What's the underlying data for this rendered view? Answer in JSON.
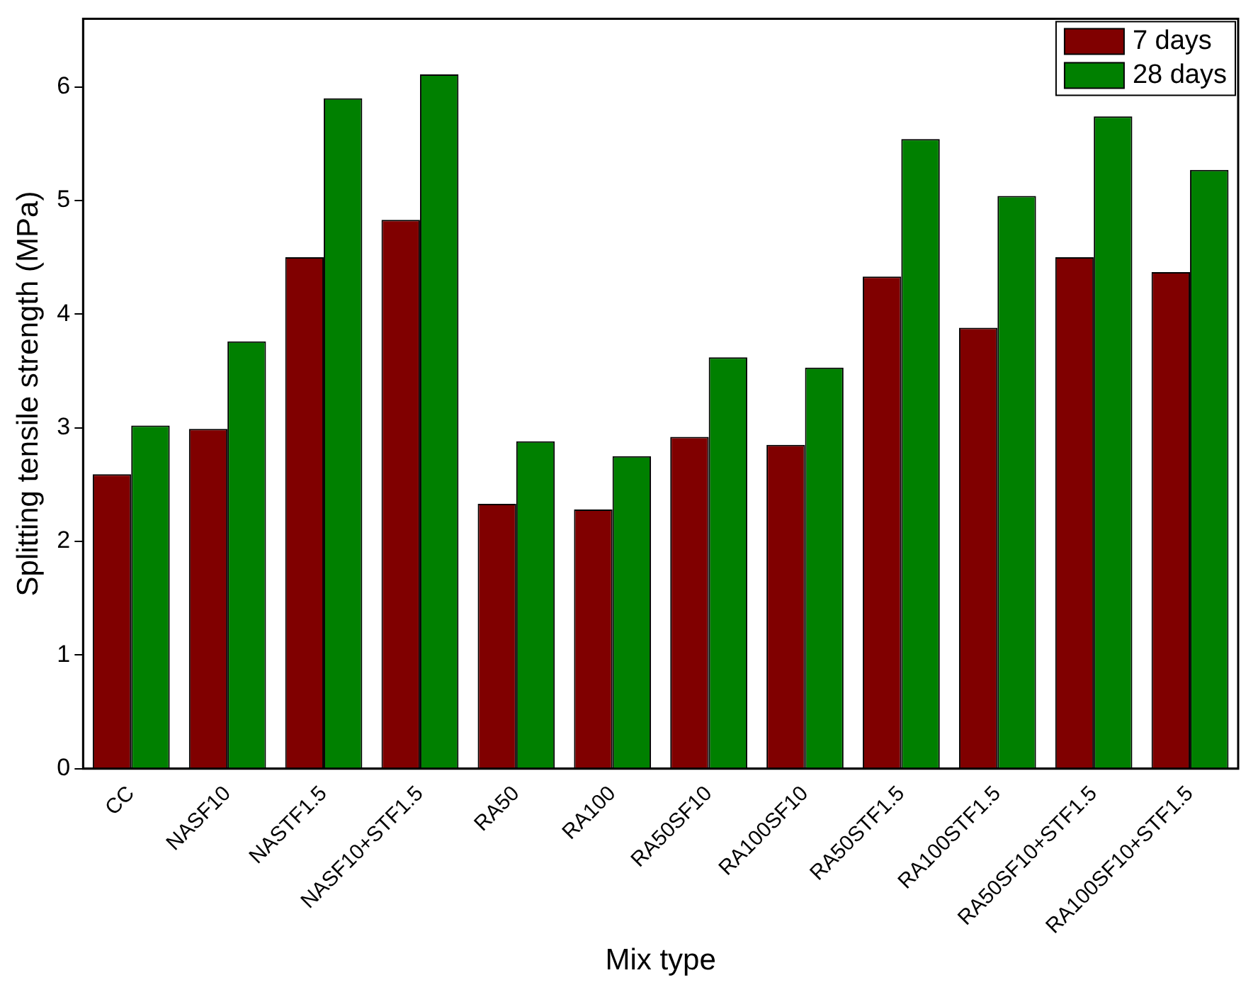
{
  "chart_data": {
    "type": "bar",
    "xlabel": "Mix type",
    "ylabel": "Splitting tensile strength (MPa)",
    "categories": [
      "CC",
      "NASF10",
      "NASTF1.5",
      "NASF10+STF1.5",
      "RA50",
      "RA100",
      "RA50SF10",
      "RA100SF10",
      "RA50STF1.5",
      "RA100STF1.5",
      "RA50SF10+STF1.5",
      "RA100SF10+STF1.5"
    ],
    "series": [
      {
        "name": "7 days",
        "color": "#800000",
        "values": [
          2.59,
          2.99,
          4.5,
          4.83,
          2.33,
          2.28,
          2.92,
          2.85,
          4.33,
          3.88,
          4.5,
          4.37
        ]
      },
      {
        "name": "28 days",
        "color": "#008000",
        "values": [
          3.02,
          3.76,
          5.9,
          6.11,
          2.88,
          2.75,
          3.62,
          3.53,
          5.54,
          5.04,
          5.74,
          5.27
        ]
      }
    ],
    "ylim": [
      0,
      6.6
    ],
    "yticks": [
      0,
      1,
      2,
      3,
      4,
      5,
      6
    ],
    "grid": false,
    "legend": "top right"
  }
}
